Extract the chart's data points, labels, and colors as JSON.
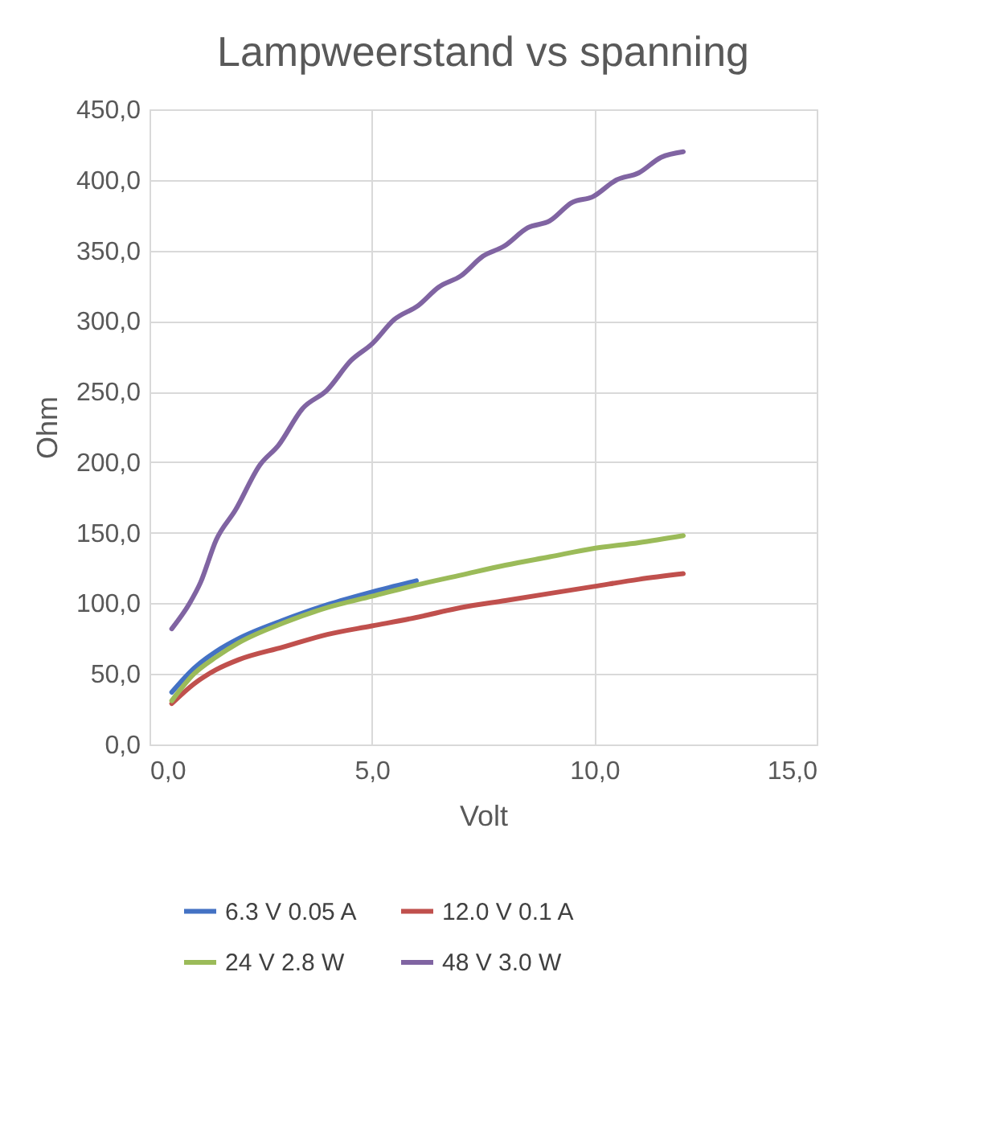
{
  "chart_data": {
    "type": "line",
    "title": "Lampweerstand vs spanning",
    "xlabel": "Volt",
    "ylabel": "Ohm",
    "xlim": [
      0,
      15
    ],
    "xticks": [
      {
        "value": 0,
        "label": "0,0"
      },
      {
        "value": 5,
        "label": "5,0"
      },
      {
        "value": 10,
        "label": "10,0"
      },
      {
        "value": 15,
        "label": "15,0"
      }
    ],
    "ylim": [
      0,
      450
    ],
    "yticks": [
      {
        "value": 0,
        "label": "0,0"
      },
      {
        "value": 50,
        "label": "50,0"
      },
      {
        "value": 100,
        "label": "100,0"
      },
      {
        "value": 150,
        "label": "150,0"
      },
      {
        "value": 200,
        "label": "200,0"
      },
      {
        "value": 250,
        "label": "250,0"
      },
      {
        "value": 300,
        "label": "300,0"
      },
      {
        "value": 350,
        "label": "350,0"
      },
      {
        "value": 400,
        "label": "400,0"
      },
      {
        "value": 450,
        "label": "450,0"
      }
    ],
    "grid": true,
    "legend": "bottom",
    "marker": "none",
    "line_style": "solid",
    "series": [
      {
        "name": "6.3 V 0.05 A",
        "color": "#4472c4",
        "x": [
          0.5,
          1,
          1.5,
          2,
          3,
          4,
          5,
          6
        ],
        "values": [
          37,
          54,
          66,
          75,
          88,
          99,
          108,
          116
        ]
      },
      {
        "name": "12.0 V 0.1 A",
        "color": "#c0504d",
        "x": [
          0.5,
          1,
          1.5,
          2,
          3,
          4,
          5,
          6,
          7,
          8,
          9,
          10,
          11,
          12
        ],
        "values": [
          29,
          43,
          53,
          60,
          69,
          78,
          84,
          90,
          97,
          102,
          107,
          112,
          117,
          121
        ]
      },
      {
        "name": "24 V 2.8 W",
        "color": "#9bbb59",
        "x": [
          0.5,
          1,
          1.5,
          2,
          3,
          4,
          5,
          6,
          7,
          8,
          9,
          10,
          11,
          12
        ],
        "values": [
          31,
          50,
          62,
          72,
          86,
          97,
          105,
          113,
          120,
          127,
          133,
          139,
          143,
          148
        ]
      },
      {
        "name": "48 V 3.0 W",
        "color": "#8064a2",
        "x": [
          0.5,
          0.9,
          1.15,
          1.5,
          1.93,
          2.48,
          2.9,
          3.44,
          3.99,
          4.53,
          5.01,
          5.5,
          6.04,
          6.5,
          7.0,
          7.5,
          7.97,
          8.5,
          9.0,
          9.5,
          9.96,
          10.5,
          11.0,
          11.5,
          12.0
        ],
        "values": [
          82,
          100,
          115,
          145,
          166,
          198,
          212,
          238,
          251,
          272,
          284,
          301,
          311,
          324,
          332,
          346,
          353,
          366,
          371,
          384,
          388,
          400,
          405,
          416,
          420
        ]
      }
    ]
  }
}
